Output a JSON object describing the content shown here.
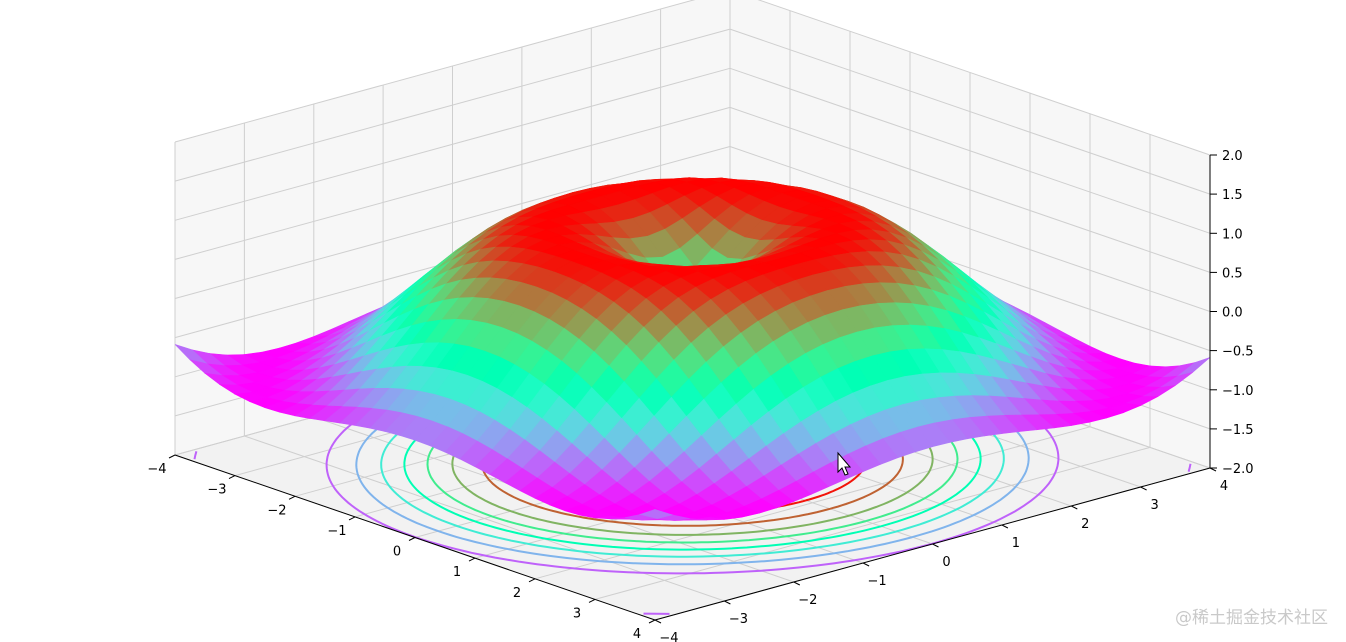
{
  "chart_data": {
    "type": "surface3d",
    "title": "",
    "xlabel": "",
    "ylabel": "",
    "zlabel": "",
    "function": "sin(sqrt(x^2 + y^2))",
    "colormap": "rainbow",
    "x_range": [
      -4,
      4
    ],
    "y_range": [
      -4,
      4
    ],
    "z_range": [
      -2,
      2
    ],
    "grid": true,
    "x_ticks": [
      "−4",
      "−3",
      "−2",
      "−1",
      "0",
      "1",
      "2",
      "3",
      "4"
    ],
    "y_ticks": [
      "−4",
      "−3",
      "−2",
      "−1",
      "0",
      "1",
      "2",
      "3",
      "4"
    ],
    "z_ticks": [
      "−2.0",
      "−1.5",
      "−1.0",
      "−0.5",
      "0.0",
      "0.5",
      "1.0",
      "1.5",
      "2.0"
    ],
    "contour_offset_z": -2,
    "contour_levels": [
      -0.75,
      -0.5,
      -0.25,
      0.0,
      0.25,
      0.5,
      0.75,
      0.95
    ]
  },
  "watermark": "@稀土掘金技术社区",
  "cursor_icon": "arrow-cursor-icon"
}
